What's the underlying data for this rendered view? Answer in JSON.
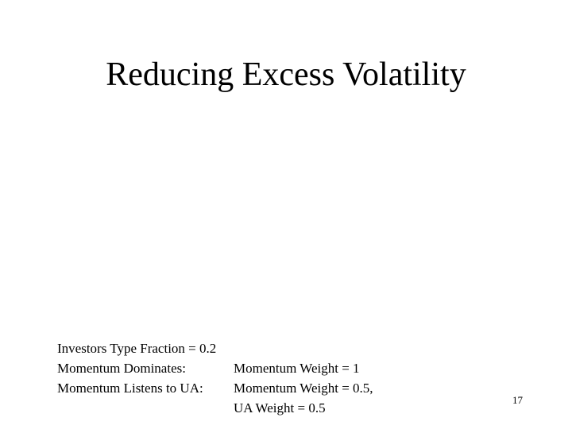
{
  "title": "Reducing Excess Volatility",
  "lines": [
    {
      "label": "Investors Type Fraction = 0.2",
      "value": ""
    },
    {
      "label": "Momentum Dominates:",
      "value": "Momentum Weight = 1"
    },
    {
      "label": "Momentum Listens to UA:",
      "value": "Momentum Weight = 0.5,"
    },
    {
      "label": null,
      "value": "UA Weight = 0.5"
    }
  ],
  "page_number": "17"
}
